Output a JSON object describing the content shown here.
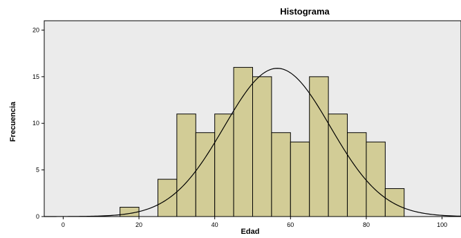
{
  "chart_data": {
    "type": "bar",
    "title": "Histograma",
    "xlabel": "Edad",
    "ylabel": "Frecuencia",
    "xlim": [
      -5,
      105
    ],
    "ylim": [
      0,
      21
    ],
    "xticks": [
      0,
      20,
      40,
      60,
      80,
      100
    ],
    "yticks": [
      0,
      5,
      10,
      15,
      20
    ],
    "bin_width": 5,
    "bins": [
      {
        "start": 15,
        "end": 20,
        "value": 1
      },
      {
        "start": 25,
        "end": 30,
        "value": 4
      },
      {
        "start": 30,
        "end": 35,
        "value": 11
      },
      {
        "start": 35,
        "end": 40,
        "value": 9
      },
      {
        "start": 40,
        "end": 45,
        "value": 11
      },
      {
        "start": 45,
        "end": 50,
        "value": 16
      },
      {
        "start": 50,
        "end": 55,
        "value": 15
      },
      {
        "start": 55,
        "end": 60,
        "value": 9
      },
      {
        "start": 60,
        "end": 65,
        "value": 8
      },
      {
        "start": 65,
        "end": 70,
        "value": 15
      },
      {
        "start": 70,
        "end": 75,
        "value": 11
      },
      {
        "start": 75,
        "end": 80,
        "value": 9
      },
      {
        "start": 80,
        "end": 85,
        "value": 8
      },
      {
        "start": 85,
        "end": 90,
        "value": 3
      }
    ],
    "normal_curve": {
      "mean": 56.5,
      "sd": 14.0,
      "peak": 15.9
    },
    "grid": false,
    "colors": {
      "bar_fill": "#d2cc96",
      "bar_stroke": "#000000",
      "plot_background": "#ebebeb",
      "curve": "#000000"
    }
  }
}
